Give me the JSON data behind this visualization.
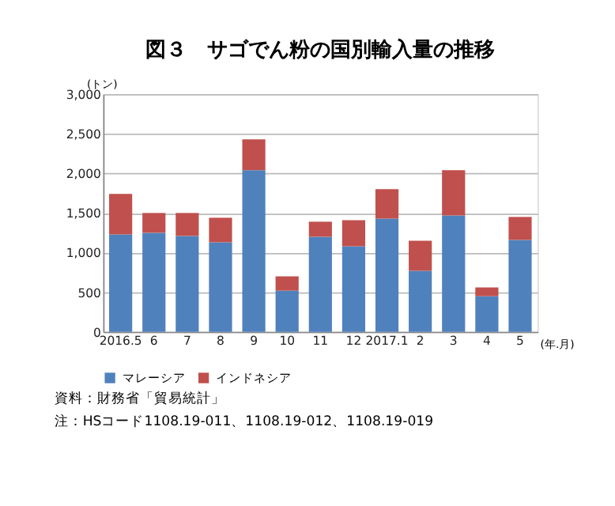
{
  "chart_data": {
    "type": "bar",
    "title": "図３　サゴでん粉の国別輸入量の推移",
    "ylabel": "(トン)",
    "xlabel": "(年.月)",
    "categories": [
      "2016.5",
      "6",
      "7",
      "8",
      "9",
      "10",
      "11",
      "12",
      "2017.1",
      "2",
      "3",
      "4",
      "5"
    ],
    "stacked": true,
    "series": [
      {
        "name": "マレーシア",
        "color": "#4f81bd",
        "values": [
          1230,
          1250,
          1210,
          1130,
          2040,
          520,
          1200,
          1080,
          1430,
          770,
          1470,
          450,
          1160
        ]
      },
      {
        "name": "インドネシア",
        "color": "#c0504d",
        "values": [
          510,
          250,
          290,
          310,
          390,
          180,
          190,
          330,
          370,
          380,
          570,
          110,
          290
        ]
      }
    ],
    "ylim": [
      0,
      3000
    ],
    "yticks": [
      {
        "value": 0,
        "label": "0"
      },
      {
        "value": 500,
        "label": "500"
      },
      {
        "value": 1000,
        "label": "1,000"
      },
      {
        "value": 1500,
        "label": "1,500"
      },
      {
        "value": 2000,
        "label": "2,000"
      },
      {
        "value": 2500,
        "label": "2,500"
      },
      {
        "value": 3000,
        "label": "3,000"
      }
    ],
    "grid": "y",
    "legend": "bottom",
    "annotations": [
      "資料：財務省「貿易統計」",
      "　注：HSコード1108.19-011、1108.19-012、1108.19-019"
    ]
  }
}
